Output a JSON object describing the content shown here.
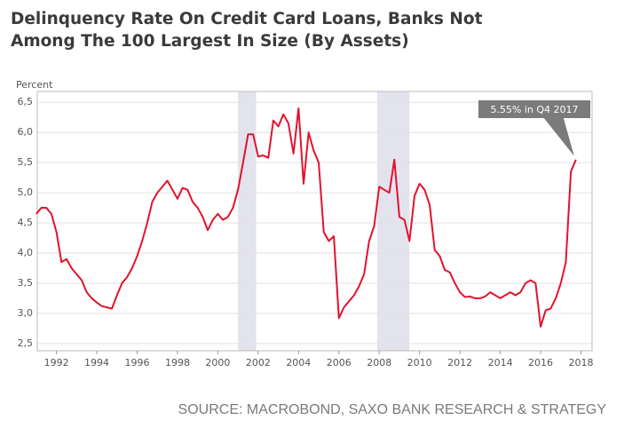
{
  "chart_data": {
    "type": "line",
    "title": [
      "Delinquency Rate On Credit Card Loans, Banks Not",
      "Among The 100 Largest In Size (By Assets)"
    ],
    "y_label": "Percent",
    "source": "SOURCE: MACROBOND, SAXO BANK RESEARCH & STRATEGY",
    "annotation": "5.55% in Q4 2017",
    "color": "#e3122d",
    "shade_color": "#e3e3ee",
    "grid": true,
    "shaded_periods": [
      [
        2001.0,
        2001.9
      ],
      [
        2007.9,
        2009.5
      ]
    ],
    "xlim": [
      1991.05,
      2018.55
    ],
    "xticks": [
      1992,
      1994,
      1996,
      1998,
      2000,
      2002,
      2004,
      2006,
      2008,
      2010,
      2012,
      2014,
      2016,
      2018
    ],
    "ylim": [
      2.38,
      6.68
    ],
    "yticks": [
      {
        "value": 2.5,
        "label": "2,5"
      },
      {
        "value": 3.0,
        "label": "3,0"
      },
      {
        "value": 3.5,
        "label": "3,5"
      },
      {
        "value": 4.0,
        "label": "4,0"
      },
      {
        "value": 4.5,
        "label": "4,5"
      },
      {
        "value": 5.0,
        "label": "5,0"
      },
      {
        "value": 5.5,
        "label": "5,5"
      },
      {
        "value": 6.0,
        "label": "6,0"
      },
      {
        "value": 6.5,
        "label": "6,5"
      }
    ],
    "x": [
      1991.0,
      1991.25,
      1991.5,
      1991.75,
      1992.0,
      1992.25,
      1992.5,
      1992.75,
      1993.0,
      1993.25,
      1993.5,
      1993.75,
      1994.0,
      1994.25,
      1994.5,
      1994.75,
      1995.0,
      1995.25,
      1995.5,
      1995.75,
      1996.0,
      1996.25,
      1996.5,
      1996.75,
      1997.0,
      1997.25,
      1997.5,
      1997.75,
      1998.0,
      1998.25,
      1998.5,
      1998.75,
      1999.0,
      1999.25,
      1999.5,
      1999.75,
      2000.0,
      2000.25,
      2000.5,
      2000.75,
      2001.0,
      2001.25,
      2001.5,
      2001.75,
      2002.0,
      2002.25,
      2002.5,
      2002.75,
      2003.0,
      2003.25,
      2003.5,
      2003.75,
      2004.0,
      2004.25,
      2004.5,
      2004.75,
      2005.0,
      2005.25,
      2005.5,
      2005.75,
      2006.0,
      2006.25,
      2006.5,
      2006.75,
      2007.0,
      2007.25,
      2007.5,
      2007.75,
      2008.0,
      2008.25,
      2008.5,
      2008.75,
      2009.0,
      2009.25,
      2009.5,
      2009.75,
      2010.0,
      2010.25,
      2010.5,
      2010.75,
      2011.0,
      2011.25,
      2011.5,
      2011.75,
      2012.0,
      2012.25,
      2012.5,
      2012.75,
      2013.0,
      2013.25,
      2013.5,
      2013.75,
      2014.0,
      2014.25,
      2014.5,
      2014.75,
      2015.0,
      2015.25,
      2015.5,
      2015.75,
      2016.0,
      2016.25,
      2016.5,
      2016.75,
      2017.0,
      2017.25,
      2017.5,
      2017.75
    ],
    "values": [
      4.65,
      4.75,
      4.75,
      4.65,
      4.35,
      3.85,
      3.9,
      3.75,
      3.65,
      3.55,
      3.35,
      3.25,
      3.18,
      3.12,
      3.1,
      3.08,
      3.3,
      3.5,
      3.6,
      3.75,
      3.95,
      4.2,
      4.5,
      4.85,
      5.0,
      5.1,
      5.2,
      5.05,
      4.9,
      5.08,
      5.05,
      4.85,
      4.75,
      4.6,
      4.38,
      4.55,
      4.65,
      4.55,
      4.6,
      4.75,
      5.05,
      5.5,
      5.97,
      5.97,
      5.6,
      5.62,
      5.58,
      6.2,
      6.1,
      6.3,
      6.15,
      5.65,
      6.4,
      5.15,
      6.0,
      5.7,
      5.5,
      4.35,
      4.2,
      4.28,
      2.92,
      3.1,
      3.2,
      3.3,
      3.45,
      3.65,
      4.2,
      4.45,
      5.1,
      5.05,
      5.0,
      5.55,
      4.6,
      4.55,
      4.2,
      4.95,
      5.15,
      5.05,
      4.8,
      4.05,
      3.95,
      3.72,
      3.68,
      3.5,
      3.35,
      3.27,
      3.28,
      3.25,
      3.25,
      3.28,
      3.35,
      3.3,
      3.25,
      3.3,
      3.35,
      3.3,
      3.35,
      3.5,
      3.55,
      3.5,
      2.78,
      3.05,
      3.08,
      3.25,
      3.5,
      3.85,
      5.35,
      5.55
    ]
  }
}
